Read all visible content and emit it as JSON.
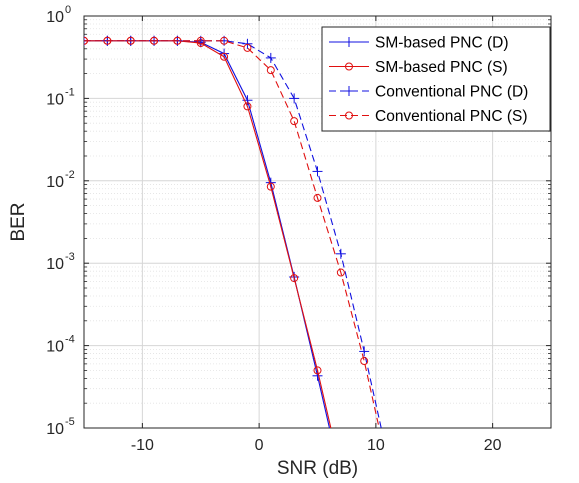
{
  "chart_data": {
    "type": "line",
    "xlabel": "SNR (dB)",
    "ylabel": "BER",
    "xlim": [
      -15,
      25
    ],
    "ylim": [
      1e-05,
      1
    ],
    "yscale": "log",
    "xticks": [
      -10,
      0,
      10,
      20
    ],
    "yticks": [
      {
        "base": "10",
        "exp": "0",
        "value": 1
      },
      {
        "base": "10",
        "exp": "-1",
        "value": 0.1
      },
      {
        "base": "10",
        "exp": "-2",
        "value": 0.01
      },
      {
        "base": "10",
        "exp": "-3",
        "value": 0.001
      },
      {
        "base": "10",
        "exp": "-4",
        "value": 0.0001
      },
      {
        "base": "10",
        "exp": "-5",
        "value": 1e-05
      }
    ],
    "grid": true,
    "minor_grid": true,
    "legend_position": "top-right",
    "series": [
      {
        "name": "SM-based PNC (D)",
        "color": "#1010e0",
        "line": "solid",
        "marker": "plus",
        "x": [
          -15,
          -13,
          -11,
          -9,
          -7,
          -5,
          -3,
          -1,
          1,
          3,
          5,
          7
        ],
        "y": [
          0.5,
          0.5,
          0.5,
          0.5,
          0.5,
          0.48,
          0.35,
          0.095,
          0.0095,
          0.00068,
          4.3e-05,
          2.5e-06
        ]
      },
      {
        "name": "SM-based PNC (S)",
        "color": "#e01010",
        "line": "solid",
        "marker": "circle",
        "x": [
          -15,
          -13,
          -11,
          -9,
          -7,
          -5,
          -3,
          -1,
          1,
          3,
          5,
          7
        ],
        "y": [
          0.5,
          0.5,
          0.5,
          0.5,
          0.5,
          0.47,
          0.32,
          0.08,
          0.0085,
          0.00066,
          5e-05,
          3e-06
        ]
      },
      {
        "name": "Conventional PNC (D)",
        "color": "#1010e0",
        "line": "dashed",
        "marker": "plus",
        "x": [
          -15,
          -13,
          -11,
          -9,
          -7,
          -5,
          -3,
          -1,
          1,
          3,
          5,
          7,
          9,
          11
        ],
        "y": [
          0.5,
          0.5,
          0.5,
          0.5,
          0.5,
          0.5,
          0.5,
          0.46,
          0.31,
          0.1,
          0.013,
          0.0013,
          8.5e-05,
          4.5e-06
        ]
      },
      {
        "name": "Conventional PNC (S)",
        "color": "#e01010",
        "line": "dashed",
        "marker": "circle",
        "x": [
          -15,
          -13,
          -11,
          -9,
          -7,
          -5,
          -3,
          -1,
          1,
          3,
          5,
          7,
          9,
          11
        ],
        "y": [
          0.5,
          0.5,
          0.5,
          0.5,
          0.5,
          0.5,
          0.5,
          0.41,
          0.22,
          0.053,
          0.0062,
          0.00077,
          6.5e-05,
          3.5e-06
        ]
      }
    ]
  }
}
